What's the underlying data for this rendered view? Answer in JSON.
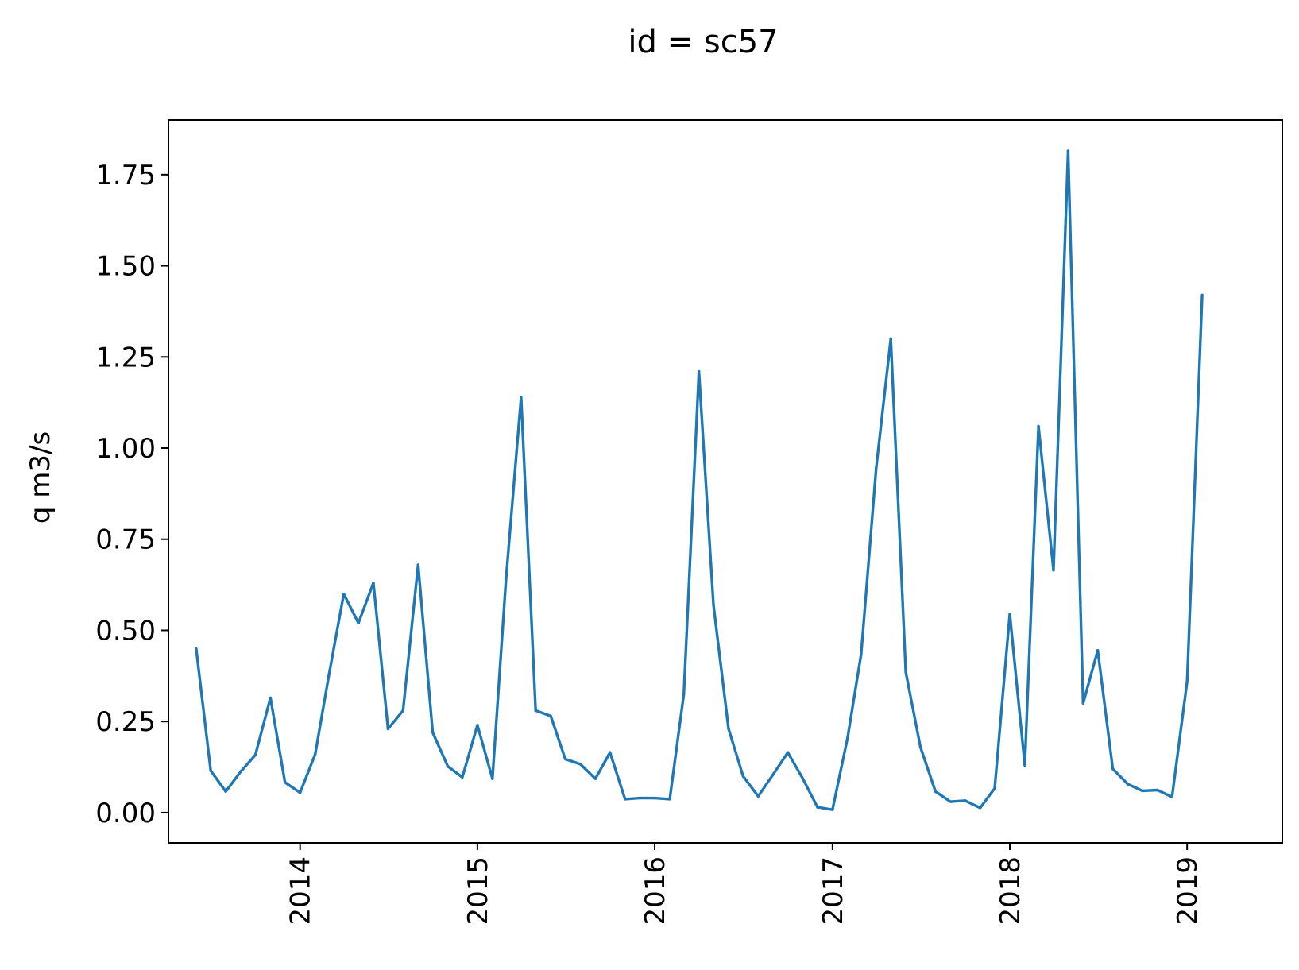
{
  "chart_data": {
    "type": "line",
    "title": "id = sc57",
    "xlabel": "",
    "ylabel": "q m3/s",
    "xlim": [
      "2013-04-05",
      "2019-07-16"
    ],
    "ylim": [
      -0.083,
      1.9
    ],
    "grid": false,
    "line_color": "#1f77b4",
    "x_ticks": [
      {
        "date": "2014-01-01",
        "label": "2014"
      },
      {
        "date": "2015-01-01",
        "label": "2015"
      },
      {
        "date": "2016-01-01",
        "label": "2016"
      },
      {
        "date": "2017-01-01",
        "label": "2017"
      },
      {
        "date": "2018-01-01",
        "label": "2018"
      },
      {
        "date": "2019-01-01",
        "label": "2019"
      }
    ],
    "y_ticks": [
      {
        "value": 0.0,
        "label": "0.00"
      },
      {
        "value": 0.25,
        "label": "0.25"
      },
      {
        "value": 0.5,
        "label": "0.50"
      },
      {
        "value": 0.75,
        "label": "0.75"
      },
      {
        "value": 1.0,
        "label": "1.00"
      },
      {
        "value": 1.25,
        "label": "1.25"
      },
      {
        "value": 1.5,
        "label": "1.50"
      },
      {
        "value": 1.75,
        "label": "1.75"
      }
    ],
    "series": [
      {
        "x": [
          "2013-06-01",
          "2013-07-01",
          "2013-08-01",
          "2013-09-01",
          "2013-10-01",
          "2013-11-01",
          "2013-12-01",
          "2014-01-01",
          "2014-02-01",
          "2014-03-01",
          "2014-04-01",
          "2014-05-01",
          "2014-06-01",
          "2014-07-01",
          "2014-08-01",
          "2014-09-01",
          "2014-10-01",
          "2014-11-01",
          "2014-12-01",
          "2015-01-01",
          "2015-02-01",
          "2015-03-01",
          "2015-04-01",
          "2015-05-01",
          "2015-06-01",
          "2015-07-01",
          "2015-08-01",
          "2015-09-01",
          "2015-10-01",
          "2015-11-01",
          "2015-12-01",
          "2016-01-01",
          "2016-02-01",
          "2016-03-01",
          "2016-04-01",
          "2016-05-01",
          "2016-06-01",
          "2016-07-01",
          "2016-08-01",
          "2016-09-01",
          "2016-10-01",
          "2016-11-01",
          "2016-12-01",
          "2017-01-01",
          "2017-02-01",
          "2017-03-01",
          "2017-04-01",
          "2017-05-01",
          "2017-06-01",
          "2017-07-01",
          "2017-08-01",
          "2017-09-01",
          "2017-10-01",
          "2017-11-01",
          "2017-12-01",
          "2018-01-01",
          "2018-02-01",
          "2018-03-01",
          "2018-04-01",
          "2018-05-01",
          "2018-06-01",
          "2018-07-01",
          "2018-08-01",
          "2018-09-01",
          "2018-10-01",
          "2018-11-01",
          "2018-12-01",
          "2019-01-01",
          "2019-02-01"
        ],
        "values": [
          0.45,
          0.115,
          0.058,
          0.113,
          0.158,
          0.315,
          0.083,
          0.055,
          0.16,
          0.375,
          0.6,
          0.52,
          0.63,
          0.23,
          0.28,
          0.68,
          0.22,
          0.127,
          0.097,
          0.24,
          0.093,
          0.64,
          1.14,
          0.28,
          0.265,
          0.147,
          0.133,
          0.093,
          0.165,
          0.037,
          0.04,
          0.04,
          0.037,
          0.325,
          1.21,
          0.57,
          0.23,
          0.1,
          0.045,
          0.105,
          0.165,
          0.093,
          0.015,
          0.008,
          0.205,
          0.435,
          0.945,
          1.3,
          0.385,
          0.18,
          0.058,
          0.03,
          0.033,
          0.013,
          0.067,
          0.545,
          0.13,
          1.06,
          0.665,
          1.815,
          0.3,
          0.445,
          0.12,
          0.078,
          0.06,
          0.062,
          0.043,
          0.36,
          1.42
        ]
      }
    ]
  }
}
